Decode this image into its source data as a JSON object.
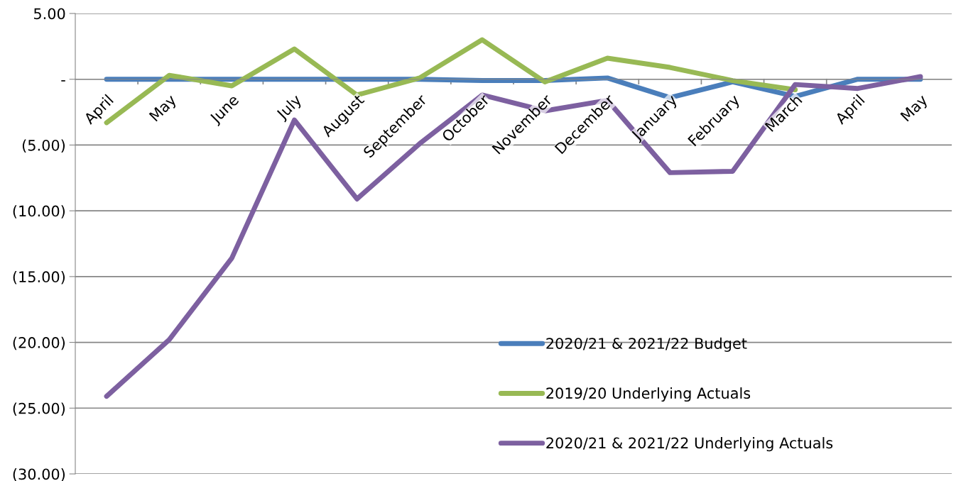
{
  "chart_data": {
    "type": "line",
    "categories": [
      "April",
      "May",
      "June",
      "July",
      "August",
      "September",
      "October",
      "November",
      "December",
      "January",
      "February",
      "March",
      "April",
      "May"
    ],
    "series": [
      {
        "name": "2020/21 & 2021/22 Budget",
        "color": "#4a7ebb",
        "values": [
          0,
          0,
          0,
          0,
          0,
          0,
          -0.1,
          -0.1,
          0.1,
          -1.4,
          -0.2,
          -1.3,
          0,
          0
        ]
      },
      {
        "name": "2019/20 Underlying Actuals",
        "color": "#98b954",
        "values": [
          -3.3,
          0.3,
          -0.5,
          2.3,
          -1.2,
          0.1,
          3.0,
          -0.2,
          1.6,
          0.9,
          -0.1,
          -0.8,
          null,
          null
        ]
      },
      {
        "name": "2020/21 & 2021/22 Underlying Actuals",
        "color": "#7d60a0",
        "values": [
          -24.1,
          -19.8,
          -13.6,
          -3.1,
          -9.1,
          -4.9,
          -1.2,
          -2.4,
          -1.6,
          -7.1,
          -7.0,
          -0.4,
          -0.7,
          0.2
        ]
      }
    ],
    "ylim": [
      -30,
      5
    ],
    "yticks": [
      {
        "value": 5,
        "label": "5.00"
      },
      {
        "value": 0,
        "label": "-"
      },
      {
        "value": -5,
        "label": "(5.00)"
      },
      {
        "value": -10,
        "label": "(10.00)"
      },
      {
        "value": -15,
        "label": "(15.00)"
      },
      {
        "value": -20,
        "label": "(20.00)"
      },
      {
        "value": -25,
        "label": "(25.00)"
      },
      {
        "value": -30,
        "label": "(30.00)"
      }
    ],
    "grid": "y",
    "legend": "lower right",
    "marker": "none",
    "line_style": "solid"
  }
}
